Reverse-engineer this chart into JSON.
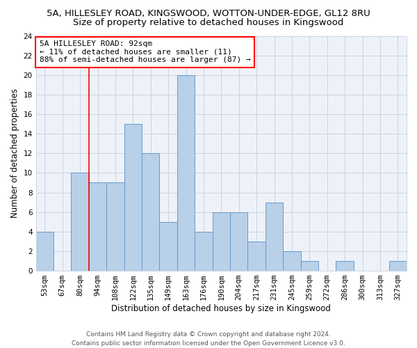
{
  "title": "5A, HILLESLEY ROAD, KINGSWOOD, WOTTON-UNDER-EDGE, GL12 8RU",
  "subtitle": "Size of property relative to detached houses in Kingswood",
  "xlabel": "Distribution of detached houses by size in Kingswood",
  "ylabel": "Number of detached properties",
  "categories": [
    "53sqm",
    "67sqm",
    "80sqm",
    "94sqm",
    "108sqm",
    "122sqm",
    "135sqm",
    "149sqm",
    "163sqm",
    "176sqm",
    "190sqm",
    "204sqm",
    "217sqm",
    "231sqm",
    "245sqm",
    "259sqm",
    "272sqm",
    "286sqm",
    "300sqm",
    "313sqm",
    "327sqm"
  ],
  "values": [
    4,
    0,
    10,
    9,
    9,
    15,
    12,
    5,
    20,
    4,
    6,
    6,
    3,
    7,
    2,
    1,
    0,
    1,
    0,
    0,
    1
  ],
  "bar_color": "#b8d0e8",
  "bar_edgecolor": "#6699cc",
  "bar_linewidth": 0.7,
  "vline_x": 2.5,
  "vline_color": "red",
  "vline_linewidth": 1.2,
  "ylim": [
    0,
    24
  ],
  "yticks": [
    0,
    2,
    4,
    6,
    8,
    10,
    12,
    14,
    16,
    18,
    20,
    22,
    24
  ],
  "annotation_title": "5A HILLESLEY ROAD: 92sqm",
  "annotation_line1": "← 11% of detached houses are smaller (11)",
  "annotation_line2": "88% of semi-detached houses are larger (87) →",
  "annotation_box_color": "red",
  "footer_line1": "Contains HM Land Registry data © Crown copyright and database right 2024.",
  "footer_line2": "Contains public sector information licensed under the Open Government Licence v3.0.",
  "background_color": "#eef2f8",
  "grid_color": "#c8d4e4",
  "title_fontsize": 9.5,
  "subtitle_fontsize": 9.5,
  "axis_label_fontsize": 8.5,
  "tick_fontsize": 7.5,
  "annotation_fontsize": 8,
  "footer_fontsize": 6.5
}
